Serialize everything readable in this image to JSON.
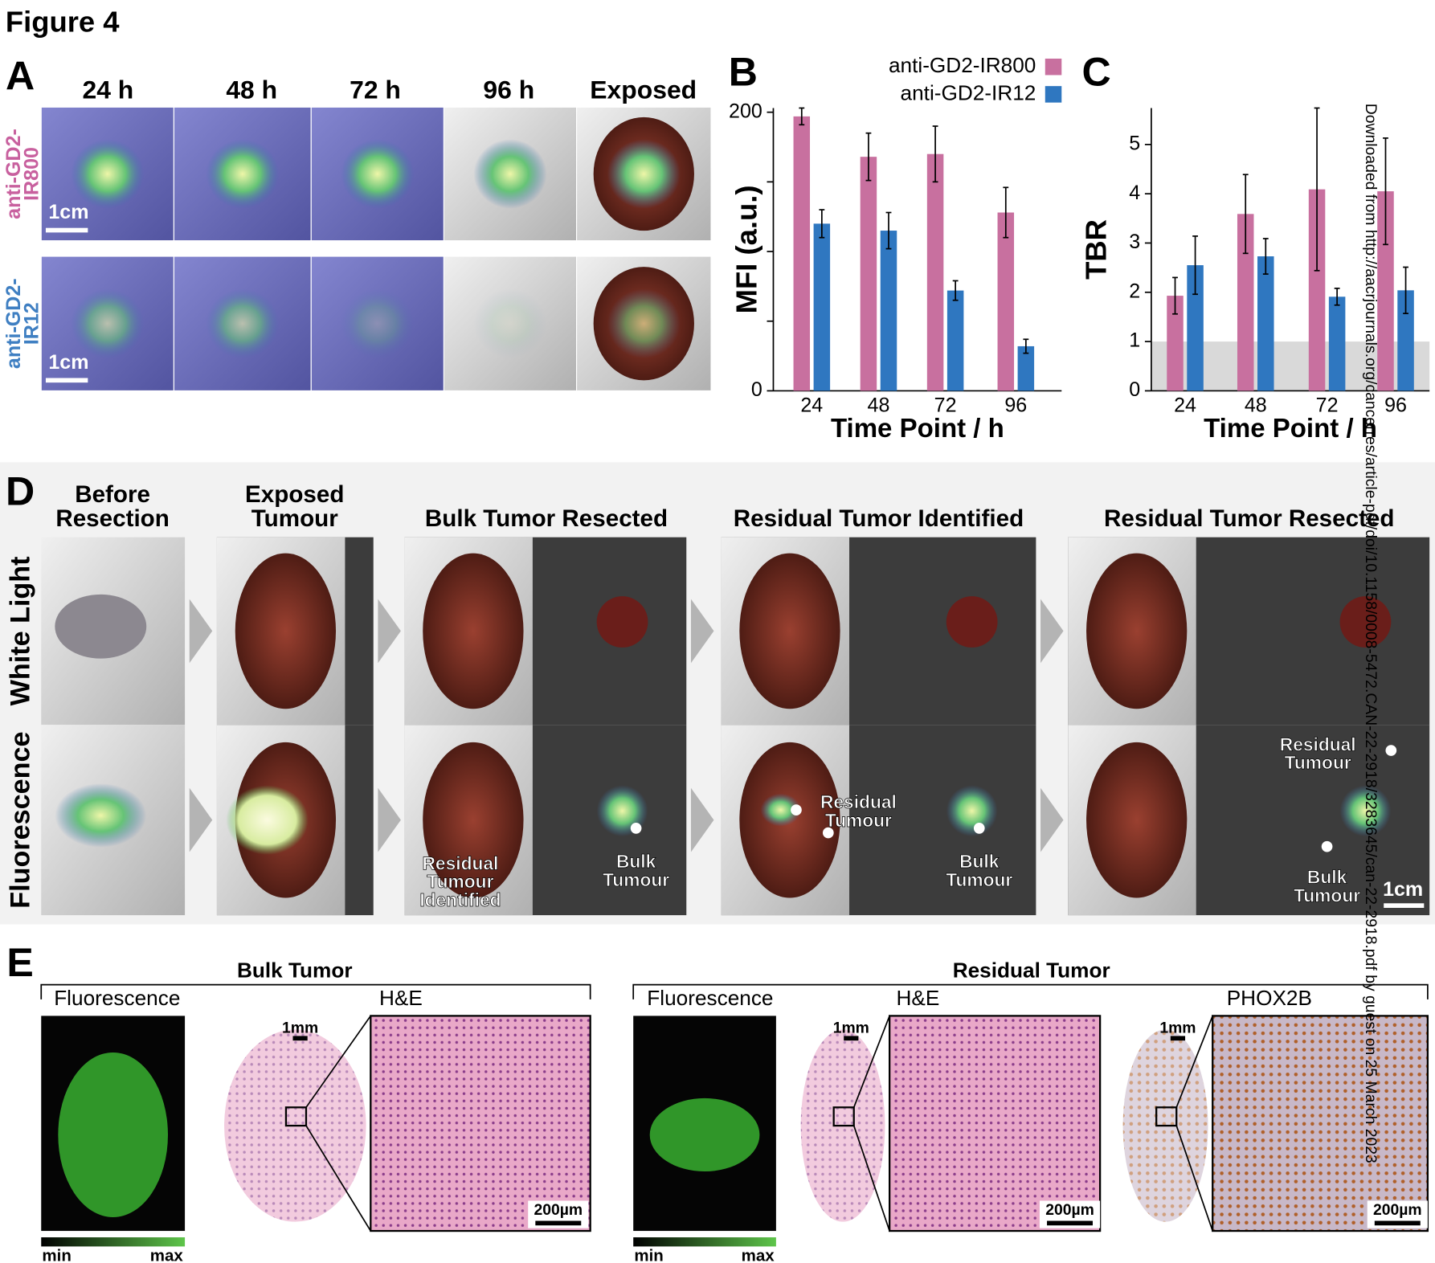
{
  "figure_title": "Figure 4",
  "panel_a": {
    "label": "A",
    "columns": [
      "24 h",
      "48 h",
      "72 h",
      "96 h",
      "Exposed"
    ],
    "rows": [
      {
        "label": [
          "anti-GD2-",
          "IR800"
        ],
        "color": "#c8609e",
        "scale_bar": "1cm"
      },
      {
        "label": [
          "anti-GD2-",
          "IR12"
        ],
        "color": "#3f7fc2",
        "scale_bar": "1cm"
      }
    ]
  },
  "chart_data": [
    {
      "type": "bar",
      "panel_label": "B",
      "y_label": "MFI (a.u.)",
      "x_label": "Time Point / h",
      "categories": [
        "24",
        "48",
        "72",
        "96"
      ],
      "series": [
        {
          "name": "anti-GD2-IR800",
          "color": "#c8709f",
          "values": [
            197,
            168,
            170,
            128
          ],
          "errors": [
            6,
            17,
            20,
            18
          ]
        },
        {
          "name": "anti-GD2-IR12",
          "color": "#2f77c0",
          "values": [
            120,
            115,
            72,
            32
          ],
          "errors": [
            10,
            13,
            7,
            5
          ]
        }
      ],
      "ylim": [
        0,
        203
      ],
      "yticks": [
        0,
        200
      ],
      "minor_yticks": [
        50,
        100,
        150
      ]
    },
    {
      "type": "bar",
      "panel_label": "C",
      "y_label": "TBR",
      "x_label": "Time Point / h",
      "categories": [
        "24",
        "48",
        "72",
        "96"
      ],
      "series": [
        {
          "color": "#c8709f",
          "values": [
            1.93,
            3.59,
            4.09,
            4.05
          ],
          "errors": [
            0.37,
            0.8,
            1.65,
            1.08
          ]
        },
        {
          "color": "#2f77c0",
          "values": [
            2.55,
            2.73,
            1.91,
            2.04
          ],
          "errors": [
            0.59,
            0.36,
            0.17,
            0.47
          ]
        }
      ],
      "ylim": [
        0,
        5.74
      ],
      "yticks": [
        0,
        1,
        2,
        3,
        4,
        5
      ],
      "shaded_band": [
        0,
        1
      ],
      "shade_color": "#d9d9d9"
    }
  ],
  "panel_d": {
    "label": "D",
    "stages": [
      [
        "Before",
        "Resection"
      ],
      [
        "Exposed",
        "Tumour"
      ],
      [
        "Bulk Tumor Resected"
      ],
      [
        "Residual Tumor Identified"
      ],
      [
        "Residual Tumor Resected"
      ]
    ],
    "rows": [
      "White Light",
      "Fluorescence"
    ],
    "annotations": [
      [
        "Residual",
        "Tumour",
        "Identified"
      ],
      [
        "Bulk",
        "Tumour"
      ],
      [
        "Residual",
        "Tumour"
      ],
      [
        "Bulk",
        "Tumour"
      ],
      [
        "Residual",
        "Tumour"
      ],
      [
        "Bulk",
        "Tumour"
      ]
    ],
    "scale_bar": "1cm"
  },
  "panel_e": {
    "label": "E",
    "groups": [
      {
        "title": "Bulk Tumor",
        "images": [
          "Fluorescence",
          "H&E"
        ]
      },
      {
        "title": "Residual Tumor",
        "images": [
          "Fluorescence",
          "H&E",
          "PHOX2B"
        ]
      }
    ],
    "mm_bars": [
      "1mm",
      "1mm",
      "1mm"
    ],
    "um_bars": [
      "200µm",
      "200µm",
      "200µm"
    ],
    "colorbars": [
      [
        "min",
        "max"
      ],
      [
        "min",
        "max"
      ]
    ]
  },
  "watermark": "Downloaded from http://aacrjournals.org/cancerres/article-pdf/doi/10.1158/0008-5472.CAN-22-2918/3283645/can-22-2918.pdf by guest on 25 March 2023"
}
